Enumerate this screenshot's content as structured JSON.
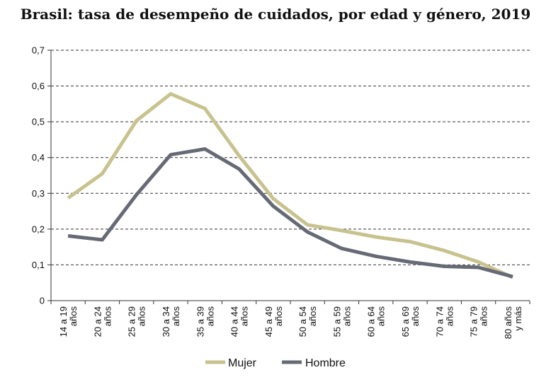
{
  "chart_data": {
    "type": "line",
    "title": "Brasil: tasa de desempeño de cuidados, por edad y género, 2019",
    "xlabel": "",
    "ylabel": "",
    "categories": [
      [
        "14 a 19",
        "años"
      ],
      [
        "20 a 24",
        "años"
      ],
      [
        "25 a 29",
        "años"
      ],
      [
        "30 a 34",
        "años"
      ],
      [
        "35 a 39",
        "años"
      ],
      [
        "40 a 44",
        "años"
      ],
      [
        "45 a 49",
        "años"
      ],
      [
        "50 a 54",
        "años"
      ],
      [
        "55 a 59",
        "años"
      ],
      [
        "60 a 64",
        "años"
      ],
      [
        "65 a 69",
        "años"
      ],
      [
        "70 a 74",
        "años"
      ],
      [
        "75 a 79",
        "años"
      ],
      [
        "80 años",
        "y más"
      ]
    ],
    "yticks": [
      "0",
      "0,1",
      "0,2",
      "0,3",
      "0,4",
      "0,5",
      "0,6",
      "0,7"
    ],
    "ylim": [
      0,
      0.7
    ],
    "grid": "horizontal dashed",
    "legend": "bottom",
    "series": [
      {
        "name": "Mujer",
        "color": "#c8c28e",
        "values": [
          0.287,
          0.355,
          0.503,
          0.578,
          0.537,
          0.405,
          0.285,
          0.212,
          0.196,
          0.178,
          0.165,
          0.14,
          0.108,
          0.065
        ]
      },
      {
        "name": "Hombre",
        "color": "#666a75",
        "values": [
          0.181,
          0.17,
          0.296,
          0.408,
          0.424,
          0.368,
          0.264,
          0.192,
          0.146,
          0.124,
          0.108,
          0.096,
          0.093,
          0.067
        ]
      }
    ]
  }
}
